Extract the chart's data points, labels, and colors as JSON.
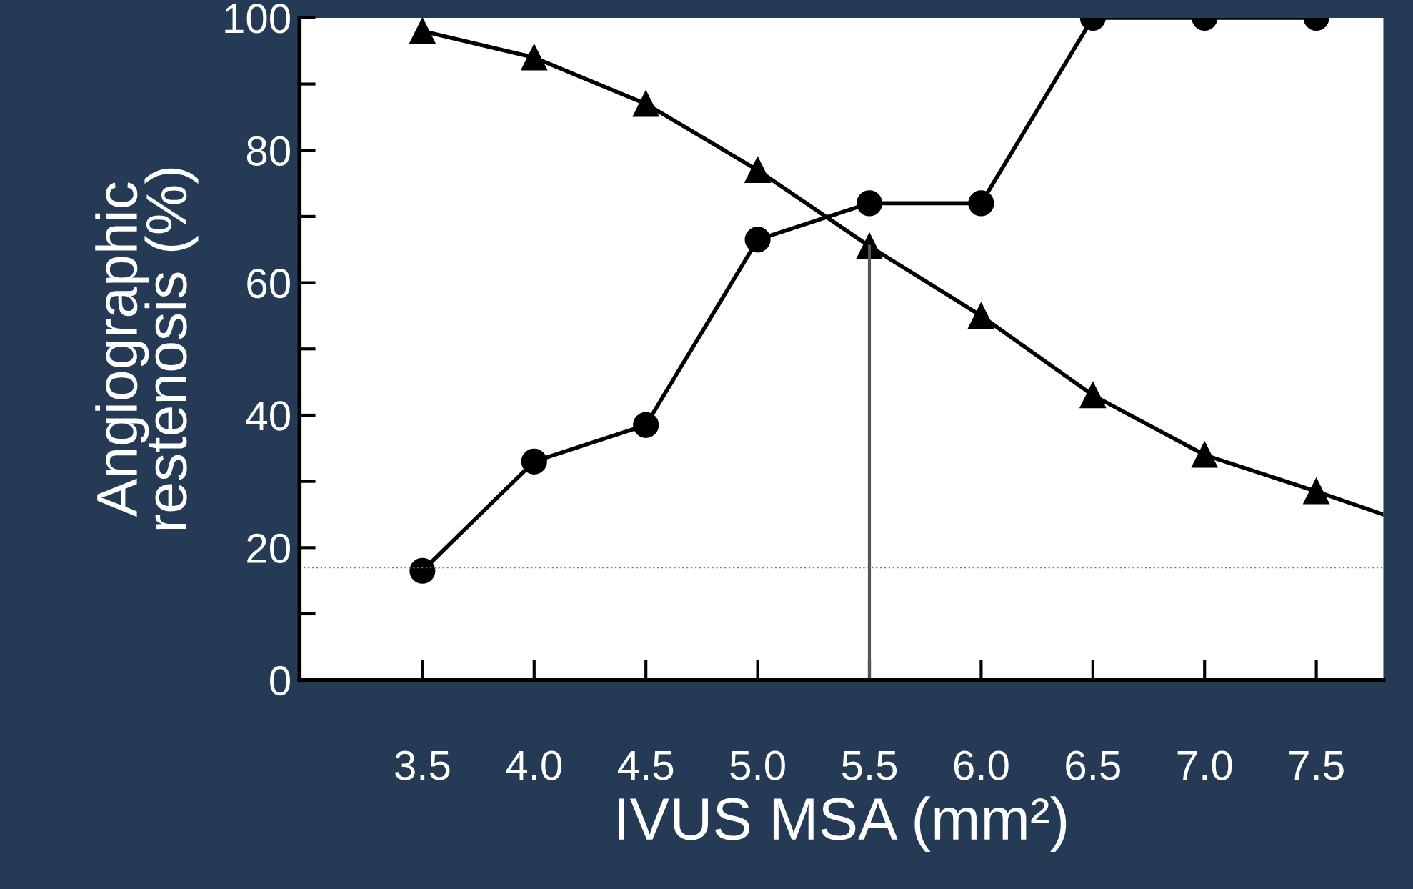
{
  "chart_data": {
    "type": "line",
    "xlabel": "IVUS MSA (mm²)",
    "ylabel": "Angiographic\nrestenosis (%)",
    "x": [
      3.5,
      4.0,
      4.5,
      5.0,
      5.5,
      6.0,
      6.5,
      7.0,
      7.5
    ],
    "series": [
      {
        "color": "#000000",
        "marker": "circle",
        "values": [
          16.5,
          33,
          38.5,
          66.5,
          72,
          72,
          100,
          100,
          100
        ]
      },
      {
        "color": "#000000",
        "marker": "triangle",
        "x": [
          3.5,
          4.0,
          4.5,
          5.0,
          5.5,
          6.0,
          6.5,
          7.0,
          7.5,
          7.8
        ],
        "values": [
          98,
          94,
          87,
          77,
          65.5,
          55,
          43,
          34,
          28.5,
          25
        ]
      },
      {
        "color": "#555555",
        "marker": "none",
        "x": [
          5.5,
          5.5
        ],
        "values": [
          0,
          65.5
        ]
      }
    ],
    "ref_lines": [
      {
        "axis": "y",
        "value": 17,
        "color": "#777777",
        "line_style": "dotted"
      }
    ],
    "xlim": [
      2.95,
      7.8
    ],
    "ylim": [
      0,
      100
    ],
    "xticks": [
      3.5,
      {
        "value": 4,
        "label": "4.0"
      },
      4.5,
      {
        "value": 5,
        "label": "5.0"
      },
      5.5,
      {
        "value": 6,
        "label": "6.0"
      },
      6.5,
      {
        "value": 7,
        "label": "7.0"
      },
      7.5
    ],
    "yticks": [
      0,
      {
        "value": 10,
        "label": null
      },
      20,
      {
        "value": 30,
        "label": null
      },
      40,
      {
        "value": 50,
        "label": null
      },
      60,
      {
        "value": 70,
        "label": null
      },
      80,
      {
        "value": 90,
        "label": null
      },
      100
    ],
    "grid": false,
    "legend": false
  }
}
